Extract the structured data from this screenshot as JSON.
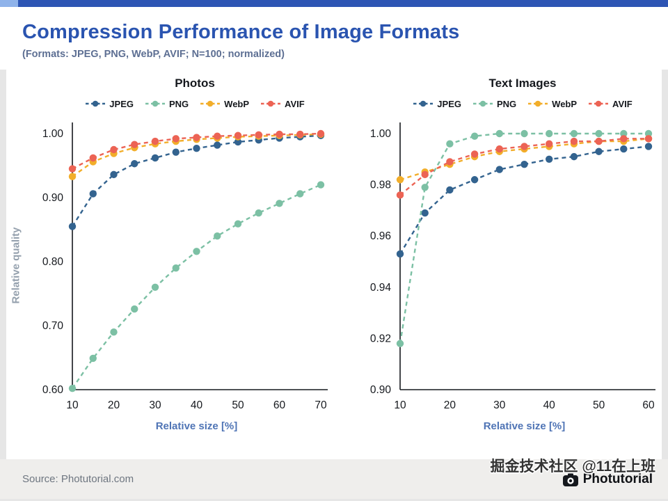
{
  "header": {
    "title": "Compression Performance of Image Formats",
    "subtitle": "(Formats: JPEG, PNG, WebP, AVIF; N=100; normalized)"
  },
  "footer": {
    "source": "Source: Photutorial.com",
    "brand": "Photutorial",
    "watermark": "掘金技术社区 @11在上班"
  },
  "colors": {
    "accent_blue": "#2d55b4",
    "accent_light_blue": "#8fb3ea",
    "jpeg": "#33638f",
    "png": "#7cc0a4",
    "webp": "#f2ae2a",
    "avif": "#ec6354"
  },
  "chart_data": [
    {
      "type": "line",
      "title": "Photos",
      "xlabel": "Relative size [%]",
      "ylabel": "Relative quality",
      "legend_position": "top",
      "grid": false,
      "xticks": [
        10,
        20,
        30,
        40,
        50,
        60,
        70
      ],
      "yticks": [
        0.6,
        0.7,
        0.8,
        0.9,
        1.0
      ],
      "xlim": [
        10,
        70
      ],
      "ylim": [
        0.6,
        1.0
      ],
      "x": [
        10,
        15,
        20,
        25,
        30,
        35,
        40,
        45,
        50,
        55,
        60,
        65,
        70
      ],
      "legend": [
        "JPEG",
        "PNG",
        "WebP",
        "AVIF"
      ],
      "series": [
        {
          "name": "JPEG",
          "values": [
            0.855,
            0.906,
            0.936,
            0.953,
            0.962,
            0.971,
            0.977,
            0.982,
            0.987,
            0.99,
            0.993,
            0.995,
            0.997
          ]
        },
        {
          "name": "PNG",
          "values": [
            0.602,
            0.649,
            0.69,
            0.726,
            0.76,
            0.79,
            0.816,
            0.84,
            0.859,
            0.876,
            0.891,
            0.906,
            0.92
          ]
        },
        {
          "name": "WebP",
          "values": [
            0.933,
            0.956,
            0.969,
            0.978,
            0.984,
            0.988,
            0.991,
            0.993,
            0.995,
            0.996,
            0.997,
            0.998,
            0.999
          ]
        },
        {
          "name": "AVIF",
          "values": [
            0.945,
            0.962,
            0.975,
            0.983,
            0.988,
            0.992,
            0.994,
            0.996,
            0.997,
            0.998,
            0.999,
            0.999,
            1.0
          ]
        }
      ]
    },
    {
      "type": "line",
      "title": "Text Images",
      "xlabel": "Relative size [%]",
      "ylabel": "",
      "legend_position": "top",
      "grid": false,
      "xticks": [
        10,
        20,
        30,
        40,
        50,
        60
      ],
      "yticks": [
        0.9,
        0.92,
        0.94,
        0.96,
        0.98,
        1.0
      ],
      "xlim": [
        10,
        60
      ],
      "ylim": [
        0.9,
        1.0
      ],
      "x": [
        10,
        15,
        20,
        25,
        30,
        35,
        40,
        45,
        50,
        55,
        60
      ],
      "legend": [
        "JPEG",
        "PNG",
        "WebP",
        "AVIF"
      ],
      "series": [
        {
          "name": "JPEG",
          "values": [
            0.953,
            0.969,
            0.978,
            0.982,
            0.986,
            0.988,
            0.99,
            0.991,
            0.993,
            0.994,
            0.995
          ]
        },
        {
          "name": "PNG",
          "values": [
            0.918,
            0.979,
            0.996,
            0.999,
            1.0,
            1.0,
            1.0,
            1.0,
            1.0,
            1.0,
            1.0
          ]
        },
        {
          "name": "WebP",
          "values": [
            0.982,
            0.985,
            0.988,
            0.991,
            0.993,
            0.994,
            0.995,
            0.996,
            0.997,
            0.997,
            0.998
          ]
        },
        {
          "name": "AVIF",
          "values": [
            0.976,
            0.984,
            0.989,
            0.992,
            0.994,
            0.995,
            0.996,
            0.997,
            0.997,
            0.998,
            0.998
          ]
        }
      ]
    }
  ]
}
